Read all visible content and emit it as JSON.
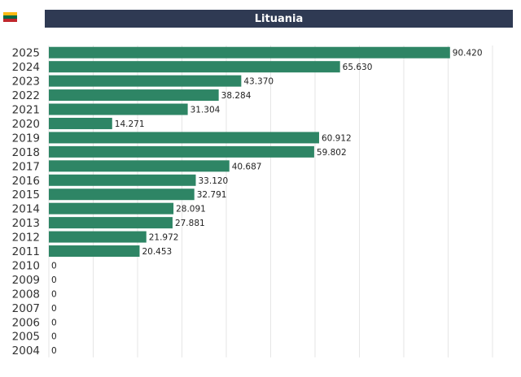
{
  "header": {
    "title": "Lituania",
    "flag_colors": [
      "#fdb913",
      "#006a44",
      "#c1272d"
    ]
  },
  "chart_data": {
    "type": "bar",
    "orientation": "horizontal",
    "title": "Lituania",
    "xlabel": "",
    "ylabel": "",
    "xlim": [
      0,
      100000
    ],
    "grid": true,
    "bar_color": "#2e8565",
    "categories": [
      "2025",
      "2024",
      "2023",
      "2022",
      "2021",
      "2020",
      "2019",
      "2018",
      "2017",
      "2016",
      "2015",
      "2014",
      "2013",
      "2012",
      "2011",
      "2010",
      "2009",
      "2008",
      "2007",
      "2006",
      "2005",
      "2004"
    ],
    "values": [
      90420,
      65630,
      43370,
      38284,
      31304,
      14271,
      60912,
      59802,
      40687,
      33120,
      32791,
      28091,
      27881,
      21972,
      20453,
      0,
      0,
      0,
      0,
      0,
      0,
      0
    ],
    "value_labels": [
      "90.420",
      "65.630",
      "43.370",
      "38.284",
      "31.304",
      "14.271",
      "60.912",
      "59.802",
      "40.687",
      "33.120",
      "32.791",
      "28.091",
      "27.881",
      "21.972",
      "20.453",
      "0",
      "0",
      "0",
      "0",
      "0",
      "0",
      "0"
    ]
  }
}
